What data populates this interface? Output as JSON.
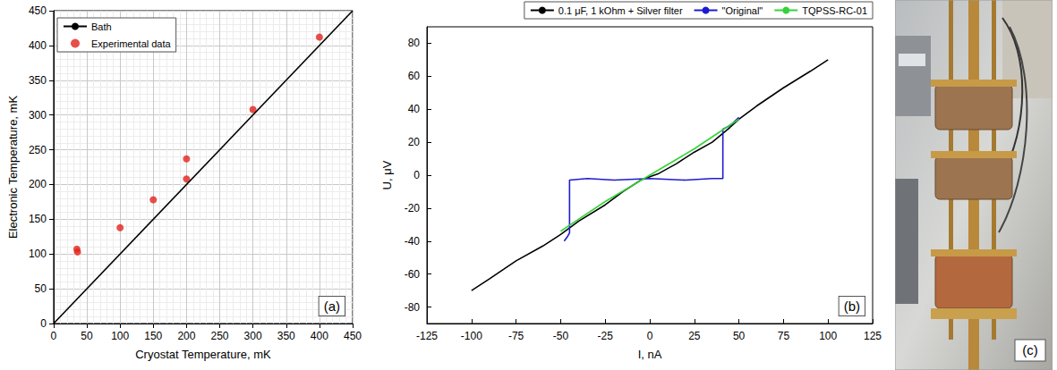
{
  "chart_data": [
    {
      "type": "scatter",
      "x_label": "Cryostat Temperature, mK",
      "y_label": "Electronic Temperature, mK",
      "annotation": "(a)",
      "xlim": [
        0,
        450
      ],
      "ylim": [
        0,
        450
      ],
      "xticks": [
        0,
        50,
        100,
        150,
        200,
        250,
        300,
        350,
        400,
        450
      ],
      "yticks": [
        0,
        50,
        100,
        150,
        200,
        250,
        300,
        350,
        400,
        450
      ],
      "grid": true,
      "legend": "top-left",
      "series": [
        {
          "name": "Bath",
          "type": "line",
          "color": "#000000",
          "line_style": "solid",
          "x": [
            0,
            450
          ],
          "values": [
            0,
            450
          ]
        },
        {
          "name": "Experimental data",
          "type": "scatter",
          "color": "#e3231c",
          "marker": "circle",
          "x": [
            35,
            36,
            100,
            150,
            200,
            200,
            300,
            400
          ],
          "values": [
            107,
            103,
            138,
            178,
            237,
            208,
            308,
            412
          ]
        }
      ]
    },
    {
      "type": "line",
      "x_label": "I, nA",
      "y_label": "U, μV",
      "annotation": "(b)",
      "xlim": [
        -125,
        125
      ],
      "ylim": [
        -90,
        90
      ],
      "xticks": [
        -125,
        -100,
        -75,
        -50,
        -25,
        0,
        25,
        50,
        75,
        100,
        125
      ],
      "yticks": [
        -80,
        -60,
        -40,
        -20,
        0,
        20,
        40,
        60,
        80
      ],
      "grid": false,
      "legend": "top-right",
      "series": [
        {
          "name": "0.1 μF, 1 kOhm + Silver filter",
          "color": "#000000",
          "line_style": "solid",
          "x": [
            -100,
            -90,
            -75,
            -60,
            -50,
            -40,
            -25,
            -15,
            -5,
            0,
            5,
            15,
            25,
            35,
            45,
            50,
            60,
            75,
            90,
            100
          ],
          "values": [
            -70,
            -63,
            -52,
            -43,
            -36,
            -28,
            -18,
            -10,
            -3,
            -1,
            1,
            7,
            14,
            20,
            29,
            34,
            42,
            53,
            63,
            70
          ]
        },
        {
          "name": "\"Original\"",
          "color": "#1c1ccf",
          "line_style": "solid",
          "x": [
            -48,
            -46,
            -45,
            -45,
            -35,
            -20,
            0,
            20,
            35,
            41,
            41,
            45,
            50
          ],
          "values": [
            -40,
            -37,
            -35,
            -3,
            -2,
            -3,
            -2,
            -3,
            -2,
            -2,
            28,
            30,
            35
          ]
        },
        {
          "name": "TQPSS-RC-01",
          "color": "#37d23a",
          "line_style": "solid",
          "x": [
            -50,
            -25,
            0,
            25,
            50
          ],
          "values": [
            -34,
            -16,
            0,
            16,
            34
          ]
        }
      ]
    }
  ],
  "photo": {
    "label": "(c)"
  }
}
